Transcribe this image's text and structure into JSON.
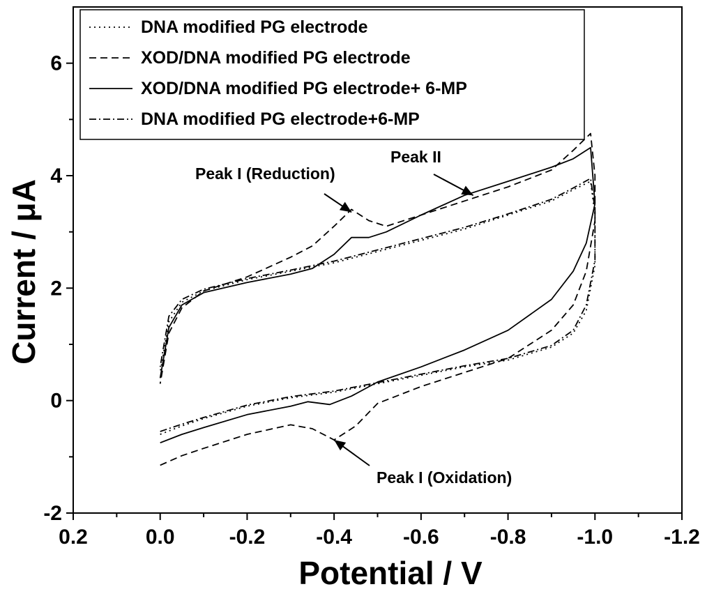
{
  "chart_data": {
    "type": "line",
    "xlabel": "Potential / V",
    "ylabel": "Current / μA",
    "xlim": [
      0.2,
      -1.2
    ],
    "ylim": [
      -2,
      7
    ],
    "x_ticks": [
      0.2,
      0.0,
      -0.2,
      -0.4,
      -0.6,
      -0.8,
      -1.0,
      -1.2
    ],
    "x_tick_labels": [
      "0.2",
      "0.0",
      "-0.2",
      "-0.4",
      "-0.6",
      "-0.8",
      "-1.0",
      "-1.2"
    ],
    "y_ticks": [
      -2,
      0,
      2,
      4,
      6
    ],
    "y_tick_labels": [
      "-2",
      "0",
      "2",
      "4",
      "6"
    ],
    "legend": [
      {
        "label": "DNA modified PG electrode",
        "style": "dotted"
      },
      {
        "label": "XOD/DNA modified PG electrode",
        "style": "dashed"
      },
      {
        "label": "XOD/DNA modified PG electrode+ 6-MP",
        "style": "solid"
      },
      {
        "label": "DNA modified PG electrode+6-MP",
        "style": "dashdot"
      }
    ],
    "series": [
      {
        "name": "DNA modified PG electrode",
        "style": "dotted",
        "points": [
          [
            0.0,
            -0.6
          ],
          [
            -0.05,
            -0.45
          ],
          [
            -0.1,
            -0.32
          ],
          [
            -0.2,
            -0.1
          ],
          [
            -0.3,
            0.05
          ],
          [
            -0.4,
            0.15
          ],
          [
            -0.5,
            0.3
          ],
          [
            -0.6,
            0.45
          ],
          [
            -0.7,
            0.6
          ],
          [
            -0.8,
            0.72
          ],
          [
            -0.9,
            0.95
          ],
          [
            -0.95,
            1.2
          ],
          [
            -0.98,
            1.6
          ],
          [
            -1.0,
            2.4
          ],
          [
            -1.0,
            3.3
          ],
          [
            -0.99,
            3.9
          ],
          [
            -0.95,
            3.75
          ],
          [
            -0.9,
            3.55
          ],
          [
            -0.8,
            3.3
          ],
          [
            -0.7,
            3.05
          ],
          [
            -0.6,
            2.85
          ],
          [
            -0.5,
            2.65
          ],
          [
            -0.4,
            2.45
          ],
          [
            -0.3,
            2.3
          ],
          [
            -0.2,
            2.15
          ],
          [
            -0.1,
            1.95
          ],
          [
            -0.05,
            1.75
          ],
          [
            -0.02,
            1.4
          ],
          [
            0.0,
            0.5
          ]
        ]
      },
      {
        "name": "XOD/DNA modified PG electrode",
        "style": "dashed",
        "points": [
          [
            0.0,
            -1.15
          ],
          [
            -0.05,
            -0.98
          ],
          [
            -0.1,
            -0.85
          ],
          [
            -0.2,
            -0.6
          ],
          [
            -0.3,
            -0.43
          ],
          [
            -0.35,
            -0.5
          ],
          [
            -0.4,
            -0.7
          ],
          [
            -0.45,
            -0.45
          ],
          [
            -0.5,
            -0.05
          ],
          [
            -0.6,
            0.25
          ],
          [
            -0.7,
            0.5
          ],
          [
            -0.8,
            0.75
          ],
          [
            -0.9,
            1.25
          ],
          [
            -0.95,
            1.7
          ],
          [
            -0.98,
            2.3
          ],
          [
            -1.0,
            3.2
          ],
          [
            -1.0,
            4.0
          ],
          [
            -0.99,
            4.75
          ],
          [
            -0.95,
            4.45
          ],
          [
            -0.9,
            4.1
          ],
          [
            -0.8,
            3.8
          ],
          [
            -0.7,
            3.55
          ],
          [
            -0.6,
            3.3
          ],
          [
            -0.52,
            3.1
          ],
          [
            -0.48,
            3.2
          ],
          [
            -0.44,
            3.4
          ],
          [
            -0.4,
            3.1
          ],
          [
            -0.35,
            2.75
          ],
          [
            -0.3,
            2.55
          ],
          [
            -0.2,
            2.2
          ],
          [
            -0.1,
            1.95
          ],
          [
            -0.05,
            1.65
          ],
          [
            -0.02,
            1.2
          ],
          [
            0.0,
            0.3
          ]
        ]
      },
      {
        "name": "XOD/DNA modified PG electrode+ 6-MP",
        "style": "solid",
        "points": [
          [
            0.0,
            -0.75
          ],
          [
            -0.05,
            -0.6
          ],
          [
            -0.1,
            -0.48
          ],
          [
            -0.2,
            -0.25
          ],
          [
            -0.3,
            -0.1
          ],
          [
            -0.34,
            -0.02
          ],
          [
            -0.39,
            -0.07
          ],
          [
            -0.44,
            0.08
          ],
          [
            -0.5,
            0.33
          ],
          [
            -0.6,
            0.6
          ],
          [
            -0.7,
            0.9
          ],
          [
            -0.8,
            1.25
          ],
          [
            -0.9,
            1.8
          ],
          [
            -0.95,
            2.3
          ],
          [
            -0.98,
            2.8
          ],
          [
            -1.0,
            3.5
          ],
          [
            -0.99,
            4.5
          ],
          [
            -0.95,
            4.3
          ],
          [
            -0.9,
            4.15
          ],
          [
            -0.8,
            3.9
          ],
          [
            -0.7,
            3.65
          ],
          [
            -0.6,
            3.3
          ],
          [
            -0.52,
            3.0
          ],
          [
            -0.48,
            2.9
          ],
          [
            -0.44,
            2.9
          ],
          [
            -0.4,
            2.6
          ],
          [
            -0.35,
            2.35
          ],
          [
            -0.3,
            2.25
          ],
          [
            -0.2,
            2.1
          ],
          [
            -0.1,
            1.92
          ],
          [
            -0.05,
            1.7
          ],
          [
            -0.02,
            1.3
          ],
          [
            0.0,
            0.4
          ]
        ]
      },
      {
        "name": "DNA modified PG electrode+6-MP",
        "style": "dashdot",
        "points": [
          [
            0.0,
            -0.55
          ],
          [
            -0.05,
            -0.42
          ],
          [
            -0.1,
            -0.3
          ],
          [
            -0.2,
            -0.08
          ],
          [
            -0.3,
            0.07
          ],
          [
            -0.4,
            0.17
          ],
          [
            -0.5,
            0.32
          ],
          [
            -0.6,
            0.47
          ],
          [
            -0.7,
            0.62
          ],
          [
            -0.8,
            0.75
          ],
          [
            -0.9,
            0.98
          ],
          [
            -0.95,
            1.25
          ],
          [
            -0.98,
            1.7
          ],
          [
            -1.0,
            2.5
          ],
          [
            -1.0,
            3.4
          ],
          [
            -0.99,
            3.95
          ],
          [
            -0.95,
            3.78
          ],
          [
            -0.9,
            3.58
          ],
          [
            -0.8,
            3.32
          ],
          [
            -0.7,
            3.08
          ],
          [
            -0.6,
            2.88
          ],
          [
            -0.5,
            2.68
          ],
          [
            -0.4,
            2.48
          ],
          [
            -0.3,
            2.32
          ],
          [
            -0.2,
            2.17
          ],
          [
            -0.1,
            1.98
          ],
          [
            -0.05,
            1.8
          ],
          [
            -0.02,
            1.5
          ],
          [
            0.0,
            0.6
          ]
        ]
      }
    ],
    "annotations": [
      {
        "text": "Peak I (Reduction)",
        "arrow_to": [
          -0.44,
          3.35
        ]
      },
      {
        "text": "Peak II",
        "arrow_to": [
          -0.72,
          3.65
        ]
      },
      {
        "text": "Peak I (Oxidation)",
        "arrow_to": [
          -0.4,
          -0.7
        ]
      }
    ]
  }
}
